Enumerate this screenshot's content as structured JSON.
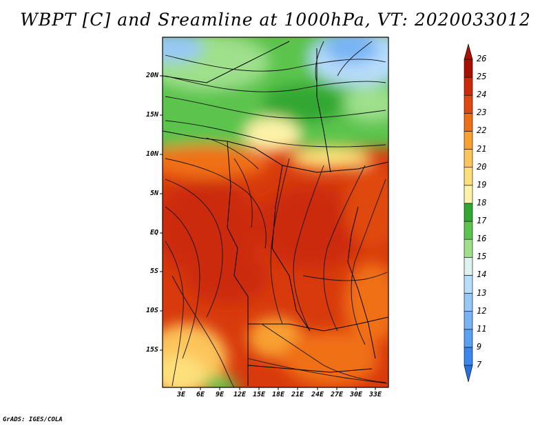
{
  "title": "WBPT [C] and Sreamline at 1000hPa, VT: 2020033012",
  "credit": "GrADS: IGES/COLA",
  "map": {
    "variable": "Wet-bulb potential temperature",
    "units": "C",
    "level": "1000hPa",
    "valid_time": "2020033012",
    "overlay": "Streamlines",
    "lat_ticks": [
      "20N",
      "15N",
      "10N",
      "5N",
      "EQ",
      "5S",
      "10S",
      "15S"
    ],
    "lon_ticks": [
      "3E",
      "6E",
      "9E",
      "12E",
      "15E",
      "18E",
      "21E",
      "24E",
      "27E",
      "30E",
      "33E"
    ]
  },
  "colorbar": {
    "labels": [
      "7",
      "9",
      "11",
      "12",
      "13",
      "14",
      "15",
      "16",
      "17",
      "18",
      "19",
      "20",
      "21",
      "22",
      "23",
      "24",
      "25",
      "26"
    ],
    "colors": [
      "#2a6fe0",
      "#3c86ee",
      "#5aa0f3",
      "#78b4f5",
      "#98c8f7",
      "#b8dcfa",
      "#dcf2ee",
      "#9fe08c",
      "#5cc44e",
      "#32a832",
      "#fdf3a8",
      "#fde07a",
      "#fcc45a",
      "#f8a030",
      "#f07018",
      "#e04810",
      "#cc2a08",
      "#a81004"
    ]
  }
}
